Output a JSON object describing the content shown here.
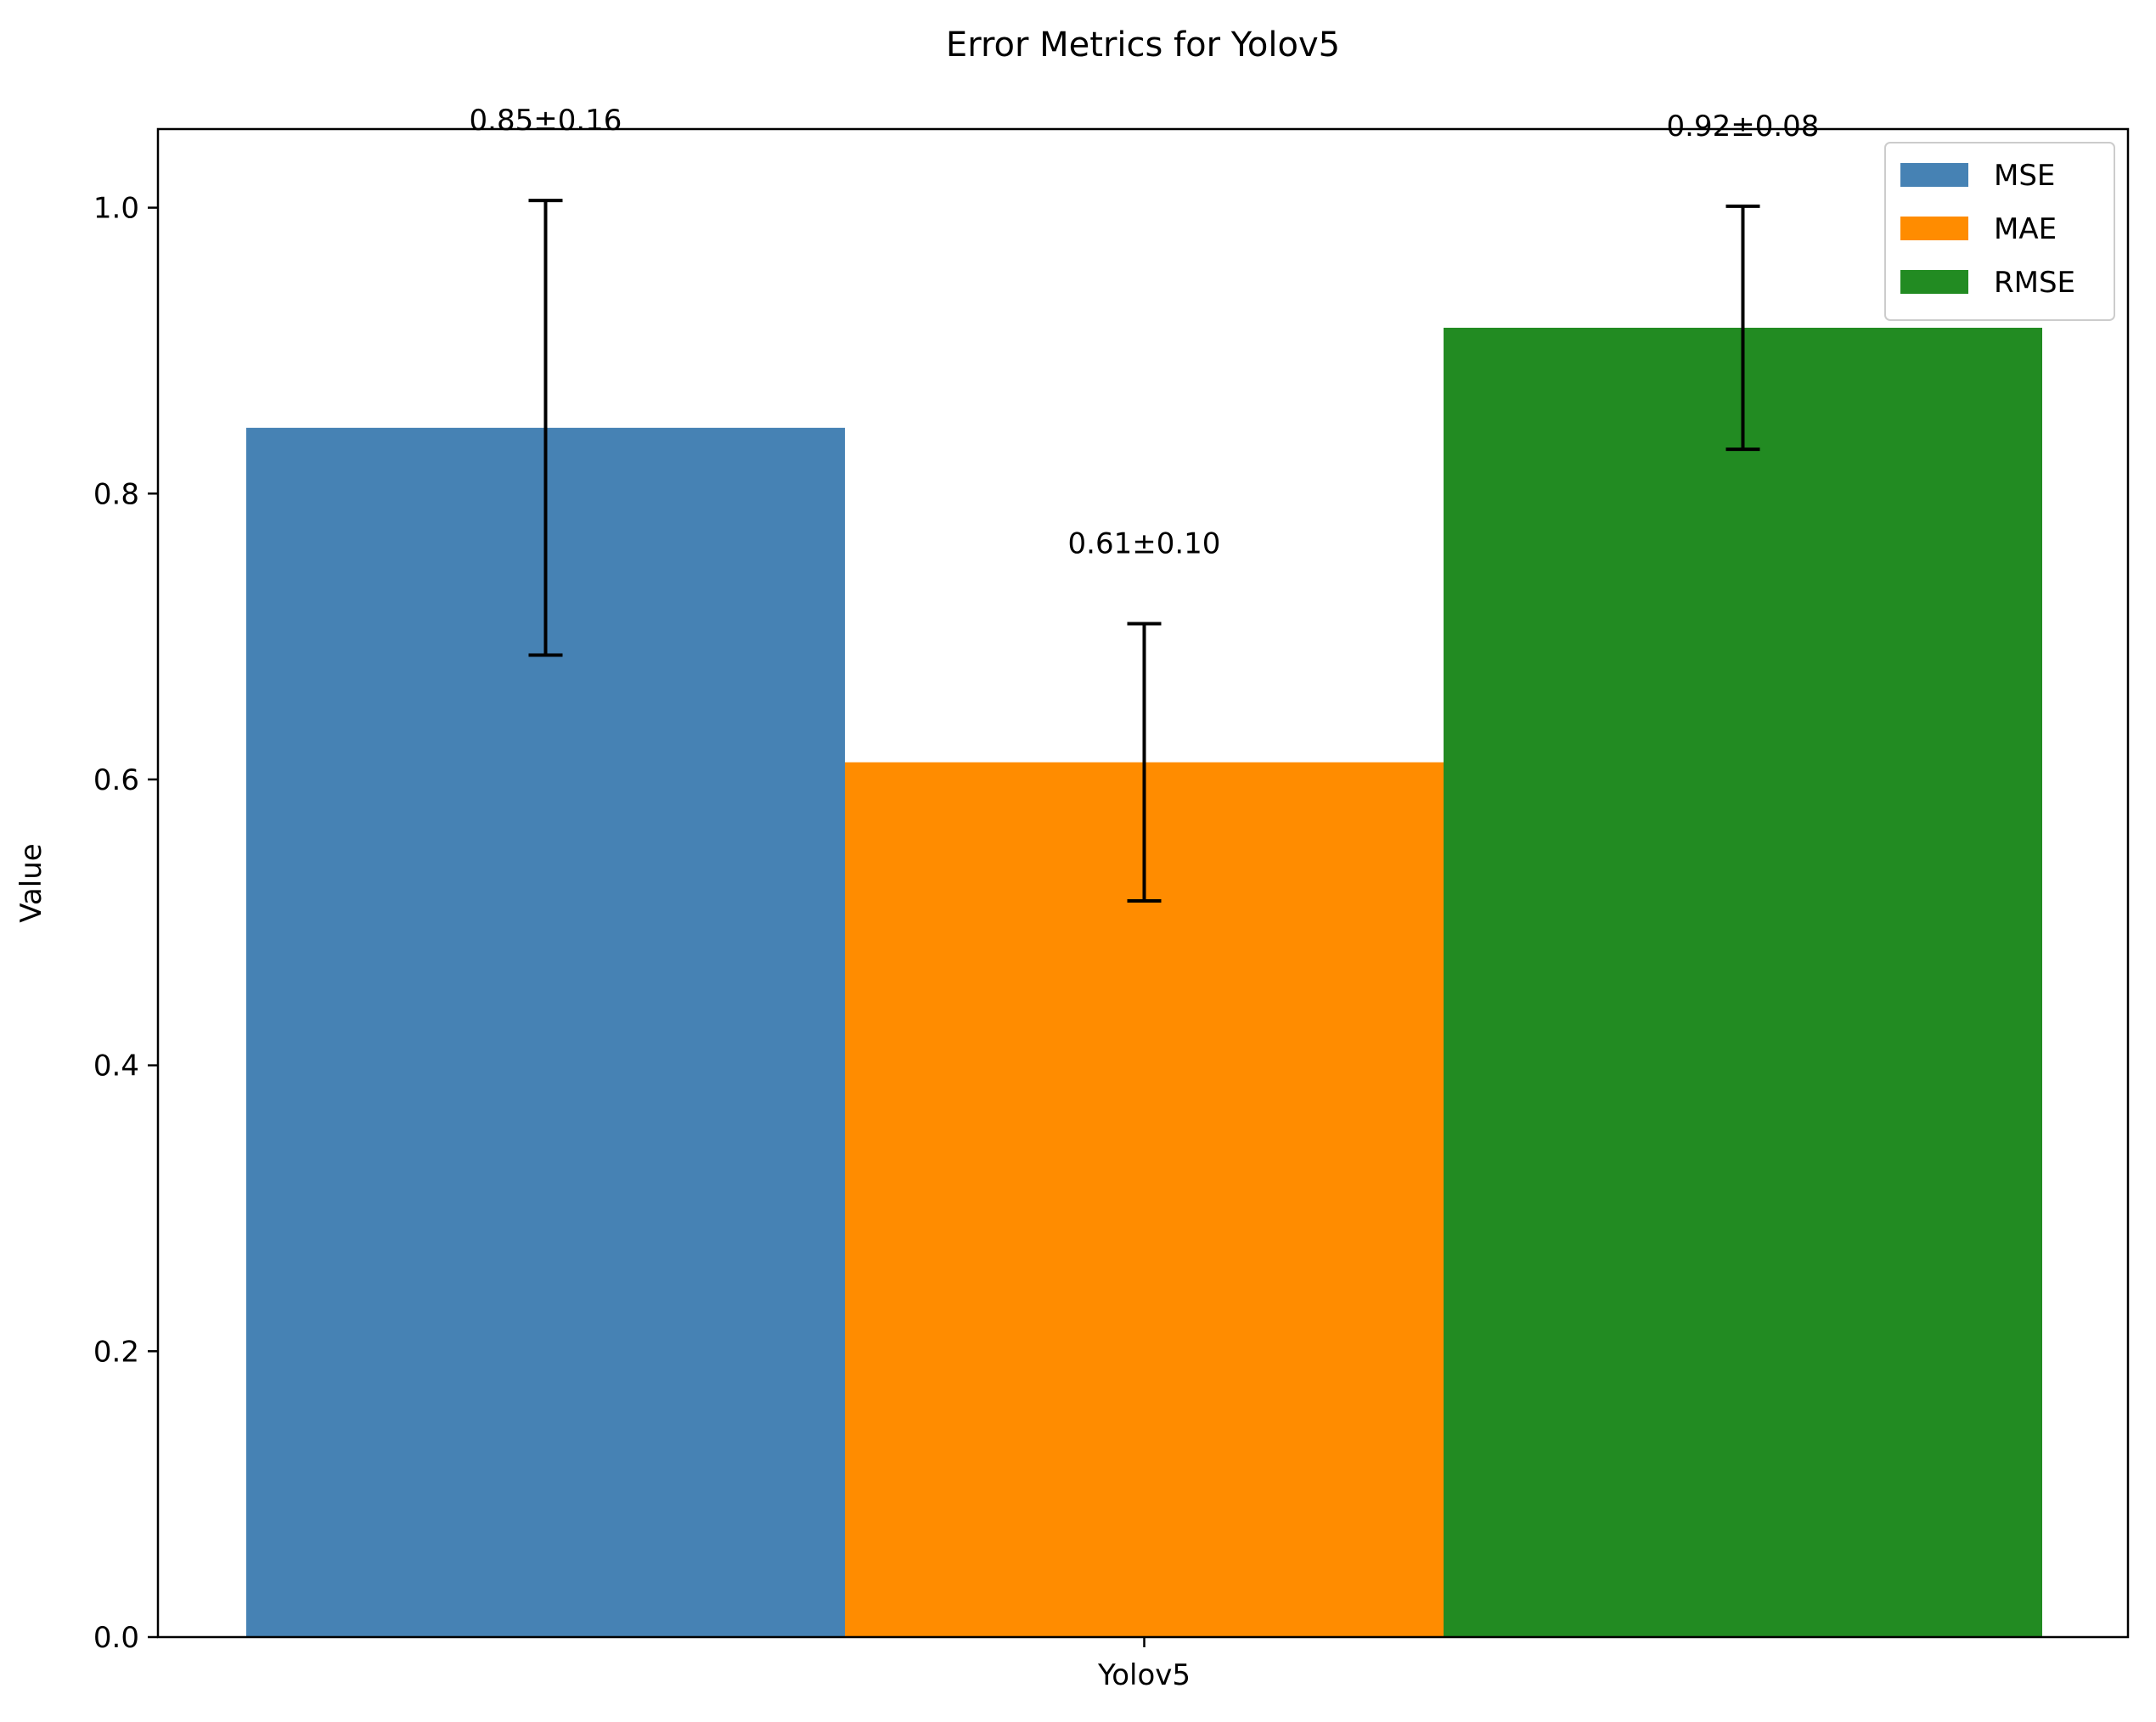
{
  "chart_data": {
    "type": "bar",
    "title": "Error Metrics for Yolov5",
    "xlabel": "",
    "ylabel": "Value",
    "categories": [
      "Yolov5"
    ],
    "series": [
      {
        "name": "MSE",
        "value": 0.846,
        "error": 0.159,
        "label": "0.85±0.16",
        "color": "#4682b4"
      },
      {
        "name": "MAE",
        "value": 0.612,
        "error": 0.097,
        "label": "0.61±0.10",
        "color": "#ff8c00"
      },
      {
        "name": "RMSE",
        "value": 0.916,
        "error": 0.085,
        "label": "0.92±0.08",
        "color": "#228b22"
      }
    ],
    "ylim": [
      0,
      1.055
    ],
    "yticks": [
      "0.0",
      "0.2",
      "0.4",
      "0.6",
      "0.8",
      "1.0"
    ],
    "grid": false,
    "legend": "top-right"
  }
}
